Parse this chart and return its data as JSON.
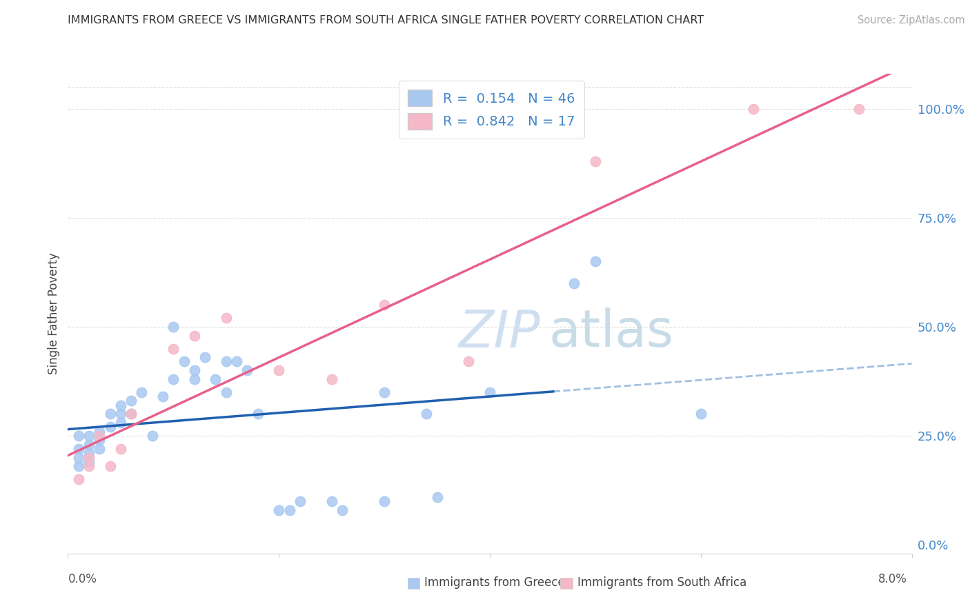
{
  "title": "IMMIGRANTS FROM GREECE VS IMMIGRANTS FROM SOUTH AFRICA SINGLE FATHER POVERTY CORRELATION CHART",
  "source": "Source: ZipAtlas.com",
  "ylabel": "Single Father Poverty",
  "legend_label1": "Immigrants from Greece",
  "legend_label2": "Immigrants from South Africa",
  "R_greece": 0.154,
  "N_greece": 46,
  "R_sa": 0.842,
  "N_sa": 17,
  "color_greece": "#a8c8f0",
  "color_sa": "#f5b8c8",
  "color_greece_line": "#2060b0",
  "color_sa_line": "#e8608a",
  "color_greece_dashed": "#a0c0e0",
  "watermark_color": "#d0dff0",
  "greece_x": [
    0.001,
    0.001,
    0.001,
    0.001,
    0.002,
    0.002,
    0.002,
    0.002,
    0.003,
    0.003,
    0.003,
    0.004,
    0.004,
    0.005,
    0.005,
    0.005,
    0.006,
    0.006,
    0.007,
    0.008,
    0.009,
    0.01,
    0.01,
    0.011,
    0.012,
    0.012,
    0.013,
    0.014,
    0.015,
    0.015,
    0.016,
    0.017,
    0.018,
    0.02,
    0.021,
    0.022,
    0.025,
    0.026,
    0.03,
    0.03,
    0.034,
    0.035,
    0.04,
    0.048,
    0.05,
    0.06
  ],
  "greece_y": [
    0.18,
    0.2,
    0.22,
    0.25,
    0.19,
    0.21,
    0.23,
    0.25,
    0.24,
    0.22,
    0.26,
    0.27,
    0.3,
    0.28,
    0.3,
    0.32,
    0.3,
    0.33,
    0.35,
    0.25,
    0.34,
    0.38,
    0.5,
    0.42,
    0.38,
    0.4,
    0.43,
    0.38,
    0.42,
    0.35,
    0.42,
    0.4,
    0.3,
    0.08,
    0.08,
    0.1,
    0.1,
    0.08,
    0.35,
    0.1,
    0.3,
    0.11,
    0.35,
    0.6,
    0.65,
    0.3
  ],
  "sa_x": [
    0.001,
    0.002,
    0.002,
    0.003,
    0.004,
    0.005,
    0.006,
    0.01,
    0.012,
    0.015,
    0.02,
    0.025,
    0.03,
    0.038,
    0.05,
    0.065,
    0.075
  ],
  "sa_y": [
    0.15,
    0.18,
    0.2,
    0.25,
    0.18,
    0.22,
    0.3,
    0.45,
    0.48,
    0.52,
    0.4,
    0.38,
    0.55,
    0.42,
    0.88,
    1.0,
    1.0
  ],
  "xmin": 0.0,
  "xmax": 0.08,
  "ymin": -0.02,
  "ymax": 1.08,
  "background_color": "#ffffff",
  "ylabel_right_vals": [
    0.0,
    0.25,
    0.5,
    0.75,
    1.0
  ],
  "ylabel_right_ticks": [
    "0.0%",
    "25.0%",
    "50.0%",
    "75.0%",
    "100.0%"
  ]
}
